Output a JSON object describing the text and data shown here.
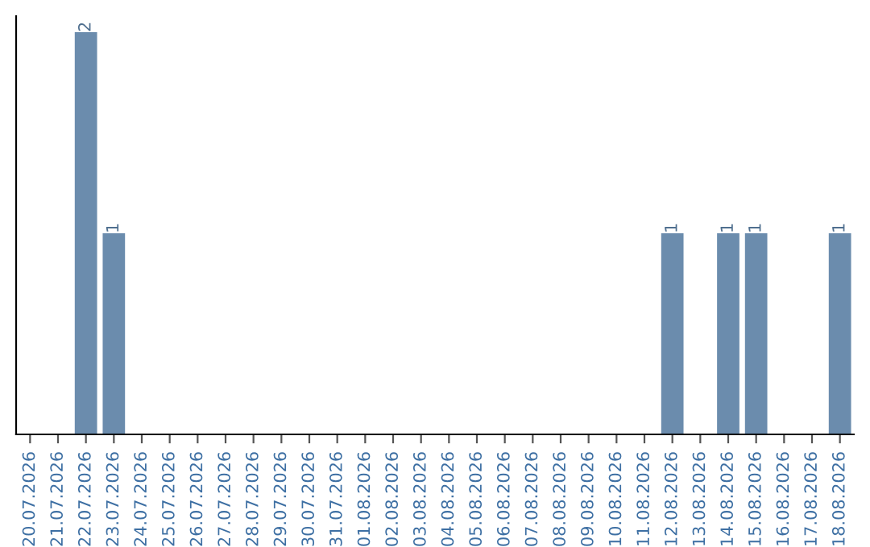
{
  "chart_data": {
    "type": "bar",
    "categories": [
      "20.07.2026",
      "21.07.2026",
      "22.07.2026",
      "23.07.2026",
      "24.07.2026",
      "25.07.2026",
      "26.07.2026",
      "27.07.2026",
      "28.07.2026",
      "29.07.2026",
      "30.07.2026",
      "31.07.2026",
      "01.08.2026",
      "02.08.2026",
      "03.08.2026",
      "04.08.2026",
      "05.08.2026",
      "06.08.2026",
      "07.08.2026",
      "08.08.2026",
      "09.08.2026",
      "10.08.2026",
      "11.08.2026",
      "12.08.2026",
      "13.08.2026",
      "14.08.2026",
      "15.08.2026",
      "16.08.2026",
      "17.08.2026",
      "18.08.2026"
    ],
    "values": [
      0,
      0,
      2,
      1,
      0,
      0,
      0,
      0,
      0,
      0,
      0,
      0,
      0,
      0,
      0,
      0,
      0,
      0,
      0,
      0,
      0,
      0,
      0,
      1,
      0,
      1,
      1,
      0,
      0,
      1
    ],
    "value_labels": [
      null,
      null,
      "2",
      "1",
      null,
      null,
      null,
      null,
      null,
      null,
      null,
      null,
      null,
      null,
      null,
      null,
      null,
      null,
      null,
      null,
      null,
      null,
      null,
      "1",
      null,
      "1",
      "1",
      null,
      null,
      "1"
    ],
    "color": "#6b8cad",
    "tick_labels": "x",
    "grid": false,
    "legend": false
  }
}
